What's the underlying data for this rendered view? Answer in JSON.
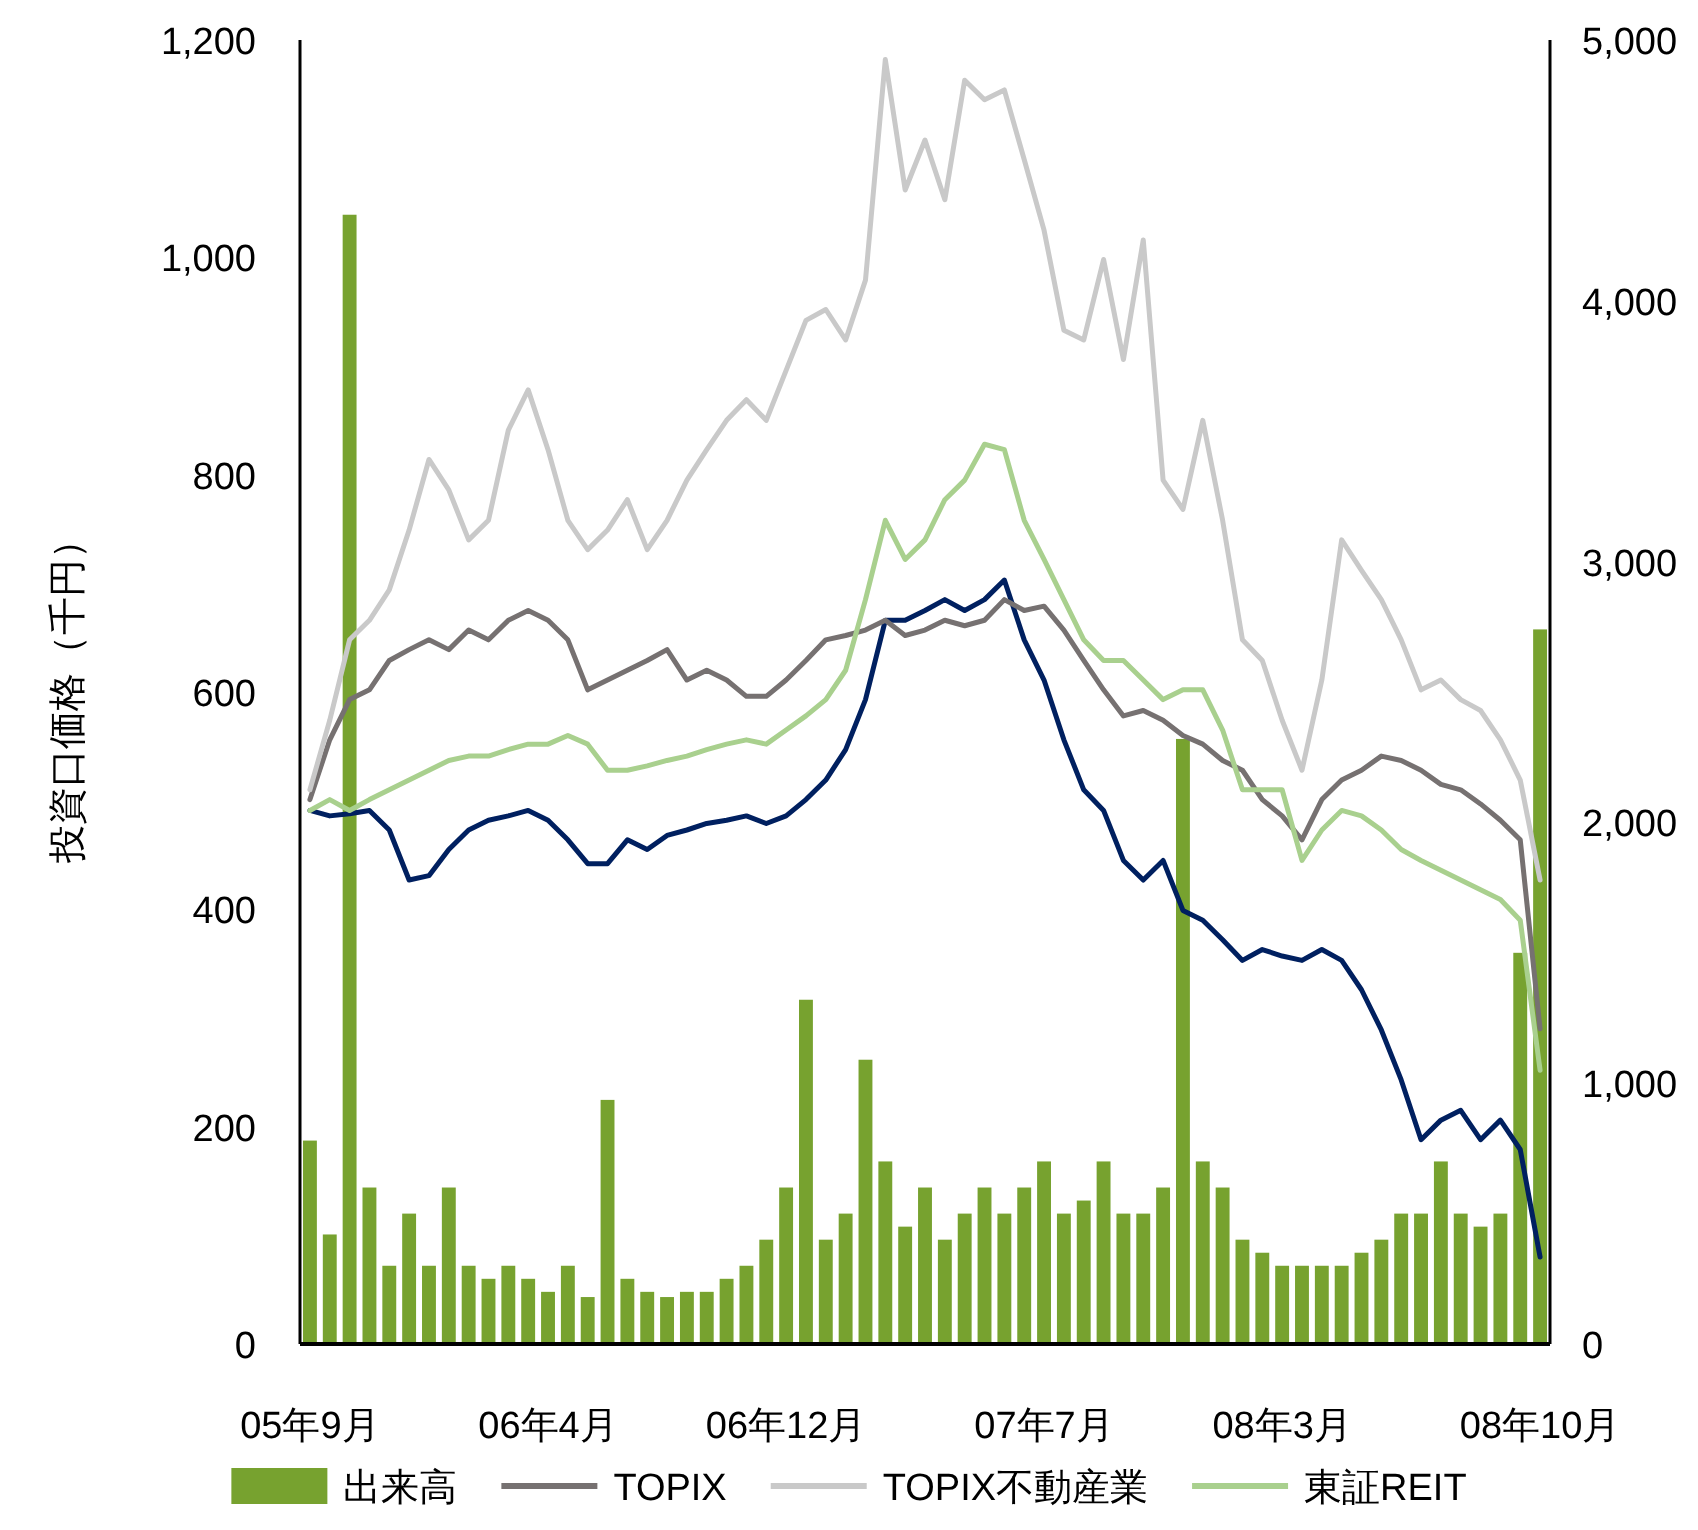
{
  "chart_data": {
    "type": "line",
    "ylabel": "投資口価格（千円）",
    "legend": "bottom",
    "categories": [
      "05年9月",
      null,
      null,
      null,
      null,
      null,
      null,
      null,
      null,
      null,
      null,
      null,
      "06年4月",
      null,
      null,
      null,
      null,
      null,
      null,
      null,
      null,
      null,
      null,
      null,
      "06年12月",
      null,
      null,
      null,
      null,
      null,
      null,
      null,
      null,
      null,
      null,
      null,
      null,
      "07年7月",
      null,
      null,
      null,
      null,
      null,
      null,
      null,
      null,
      null,
      null,
      null,
      "08年3月",
      null,
      null,
      null,
      null,
      null,
      null,
      null,
      null,
      null,
      null,
      null,
      null,
      "08年10月"
    ],
    "ylim": [
      0,
      1200
    ],
    "yticks": [
      0,
      200,
      400,
      600,
      800,
      {
        "value": 1000,
        "label": "1,000"
      },
      {
        "value": 1200,
        "label": "1,200"
      }
    ],
    "y2lim": [
      0,
      5000
    ],
    "y2ticks": [
      0,
      {
        "value": 1000,
        "label": "1,000"
      },
      {
        "value": 2000,
        "label": "2,000"
      },
      {
        "value": 3000,
        "label": "3,000"
      },
      {
        "value": 4000,
        "label": "4,000"
      },
      {
        "value": 5000,
        "label": "5,000"
      }
    ],
    "series": [
      {
        "type": "bar",
        "axis": "y2",
        "name": "出来高",
        "color": "#77a22f",
        "values": [
          780,
          420,
          4330,
          600,
          300,
          500,
          300,
          600,
          300,
          250,
          300,
          250,
          200,
          300,
          180,
          936,
          250,
          200,
          180,
          200,
          200,
          250,
          300,
          400,
          600,
          1320,
          400,
          500,
          1090,
          700,
          450,
          600,
          400,
          500,
          600,
          500,
          600,
          700,
          500,
          550,
          700,
          500,
          500,
          600,
          2320,
          700,
          600,
          400,
          350,
          300,
          300,
          300,
          300,
          350,
          400,
          500,
          500,
          700,
          500,
          450,
          500,
          1500,
          2740
        ]
      },
      {
        "color": "#002060",
        "values": [
          491,
          486,
          488,
          491,
          473,
          427,
          431,
          455,
          473,
          482,
          486,
          491,
          482,
          464,
          442,
          442,
          464,
          455,
          468,
          473,
          479,
          482,
          486,
          479,
          486,
          501,
          519,
          547,
          593,
          666,
          666,
          675,
          685,
          675,
          685,
          703,
          648,
          611,
          556,
          510,
          491,
          445,
          427,
          445,
          399,
          390,
          372,
          353,
          363,
          357,
          353,
          363,
          353,
          326,
          289,
          243,
          188,
          206,
          215,
          188,
          206,
          179,
          80
        ]
      },
      {
        "name": "TOPIX",
        "color": "#767171",
        "values": [
          501,
          556,
          593,
          602,
          629,
          639,
          648,
          639,
          657,
          648,
          666,
          675,
          666,
          648,
          602,
          611,
          620,
          629,
          639,
          611,
          620,
          611,
          596,
          596,
          611,
          629,
          648,
          652,
          657,
          666,
          652,
          657,
          666,
          661,
          666,
          685,
          675,
          679,
          657,
          629,
          602,
          578,
          583,
          574,
          560,
          552,
          537,
          528,
          501,
          486,
          464,
          501,
          519,
          528,
          541,
          537,
          528,
          515,
          510,
          497,
          482,
          464,
          290
        ]
      },
      {
        "name": "TOPIX不動産業",
        "color": "#c9c9c9",
        "values": [
          510,
          574,
          648,
          666,
          694,
          749,
          814,
          786,
          740,
          758,
          841,
          878,
          823,
          758,
          731,
          749,
          777,
          731,
          758,
          795,
          823,
          850,
          869,
          850,
          896,
          942,
          952,
          924,
          979,
          1182,
          1062,
          1108,
          1053,
          1163,
          1145,
          1154,
          1090,
          1025,
          933,
          924,
          998,
          906,
          1016,
          795,
          768,
          850,
          758,
          648,
          629,
          574,
          528,
          611,
          740,
          712,
          685,
          648,
          602,
          611,
          593,
          583,
          556,
          519,
          427
        ]
      },
      {
        "name": "東証REIT",
        "color": "#a9d08e",
        "values": [
          491,
          501,
          491,
          501,
          510,
          519,
          528,
          537,
          541,
          541,
          547,
          552,
          552,
          560,
          552,
          528,
          528,
          532,
          537,
          541,
          547,
          552,
          556,
          552,
          565,
          578,
          593,
          620,
          685,
          758,
          722,
          740,
          777,
          795,
          828,
          823,
          758,
          722,
          685,
          648,
          629,
          629,
          611,
          593,
          602,
          602,
          565,
          510,
          510,
          510,
          445,
          473,
          491,
          486,
          473,
          455,
          445,
          436,
          427,
          418,
          409,
          390,
          252
        ]
      }
    ]
  }
}
